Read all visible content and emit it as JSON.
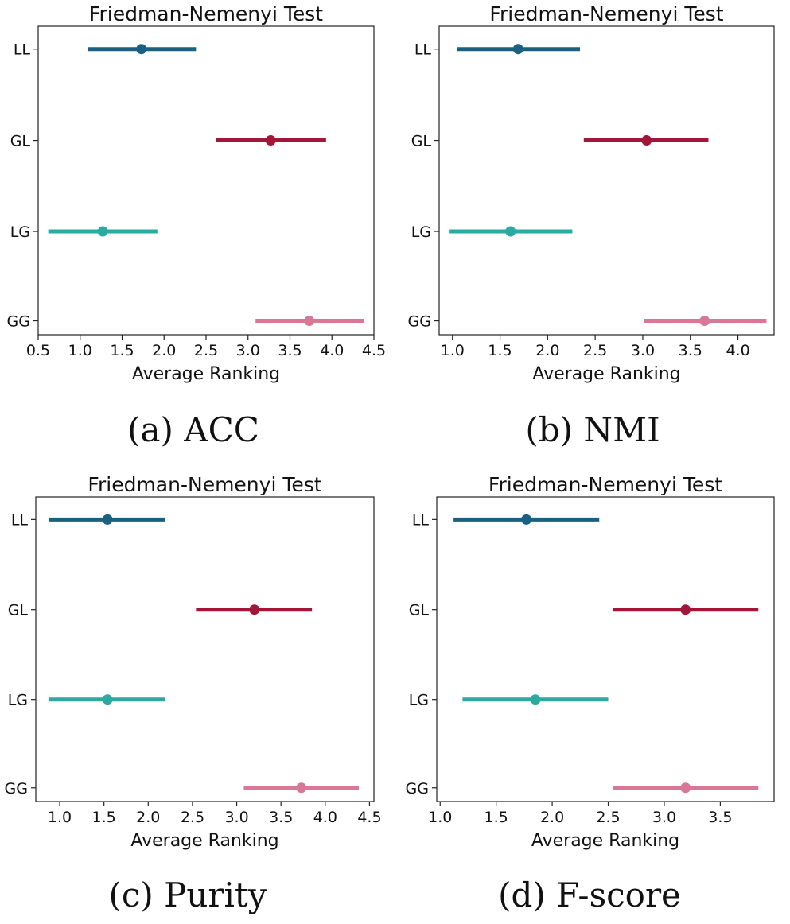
{
  "figure": {
    "captions": [
      "(a) ACC",
      "(b) NMI",
      "(c) Purity",
      "(d) F-score"
    ]
  },
  "colors": {
    "LL": "#1a6080",
    "GL": "#a3163a",
    "LG": "#2aaaa0",
    "GG": "#d97896"
  },
  "chart_data": [
    {
      "type": "interval",
      "title": "Friedman-Nemenyi Test",
      "xlabel": "Average Ranking",
      "ylabel": "",
      "categories": [
        "LL",
        "GL",
        "LG",
        "GG"
      ],
      "xlim": [
        0.5,
        4.5
      ],
      "xticks": [
        0.5,
        1.0,
        1.5,
        2.0,
        2.5,
        3.0,
        3.5,
        4.0,
        4.5
      ],
      "grid": false,
      "series": [
        {
          "name": "LL",
          "mean": 1.73,
          "low": 1.09,
          "high": 2.38
        },
        {
          "name": "GL",
          "mean": 3.27,
          "low": 2.62,
          "high": 3.93
        },
        {
          "name": "LG",
          "mean": 1.27,
          "low": 0.62,
          "high": 1.92
        },
        {
          "name": "GG",
          "mean": 3.73,
          "low": 3.09,
          "high": 4.38
        }
      ]
    },
    {
      "type": "interval",
      "title": "Friedman-Nemenyi Test",
      "xlabel": "Average Ranking",
      "ylabel": "",
      "categories": [
        "LL",
        "GL",
        "LG",
        "GG"
      ],
      "xlim": [
        0.86,
        4.38
      ],
      "xticks": [
        1.0,
        1.5,
        2.0,
        2.5,
        3.0,
        3.5,
        4.0
      ],
      "grid": false,
      "series": [
        {
          "name": "LL",
          "mean": 1.69,
          "low": 1.05,
          "high": 2.34
        },
        {
          "name": "GL",
          "mean": 3.04,
          "low": 2.38,
          "high": 3.69
        },
        {
          "name": "LG",
          "mean": 1.61,
          "low": 0.97,
          "high": 2.26
        },
        {
          "name": "GG",
          "mean": 3.65,
          "low": 3.01,
          "high": 4.3
        }
      ]
    },
    {
      "type": "interval",
      "title": "Friedman-Nemenyi Test",
      "xlabel": "Average Ranking",
      "ylabel": "",
      "categories": [
        "LL",
        "GL",
        "LG",
        "GG"
      ],
      "xlim": [
        0.73,
        4.55
      ],
      "xticks": [
        1.0,
        1.5,
        2.0,
        2.5,
        3.0,
        3.5,
        4.0,
        4.5
      ],
      "grid": false,
      "series": [
        {
          "name": "LL",
          "mean": 1.54,
          "low": 0.88,
          "high": 2.19
        },
        {
          "name": "GL",
          "mean": 3.2,
          "low": 2.54,
          "high": 3.85
        },
        {
          "name": "LG",
          "mean": 1.54,
          "low": 0.88,
          "high": 2.19
        },
        {
          "name": "GG",
          "mean": 3.73,
          "low": 3.08,
          "high": 4.38
        }
      ]
    },
    {
      "type": "interval",
      "title": "Friedman-Nemenyi Test",
      "xlabel": "Average Ranking",
      "ylabel": "",
      "categories": [
        "LL",
        "GL",
        "LG",
        "GG"
      ],
      "xlim": [
        0.97,
        3.98
      ],
      "xticks": [
        1.0,
        1.5,
        2.0,
        2.5,
        3.0,
        3.5
      ],
      "grid": false,
      "series": [
        {
          "name": "LL",
          "mean": 1.77,
          "low": 1.12,
          "high": 2.42
        },
        {
          "name": "GL",
          "mean": 3.19,
          "low": 2.54,
          "high": 3.84
        },
        {
          "name": "LG",
          "mean": 1.85,
          "low": 1.2,
          "high": 2.5
        },
        {
          "name": "GG",
          "mean": 3.19,
          "low": 2.54,
          "high": 3.84
        }
      ]
    }
  ]
}
